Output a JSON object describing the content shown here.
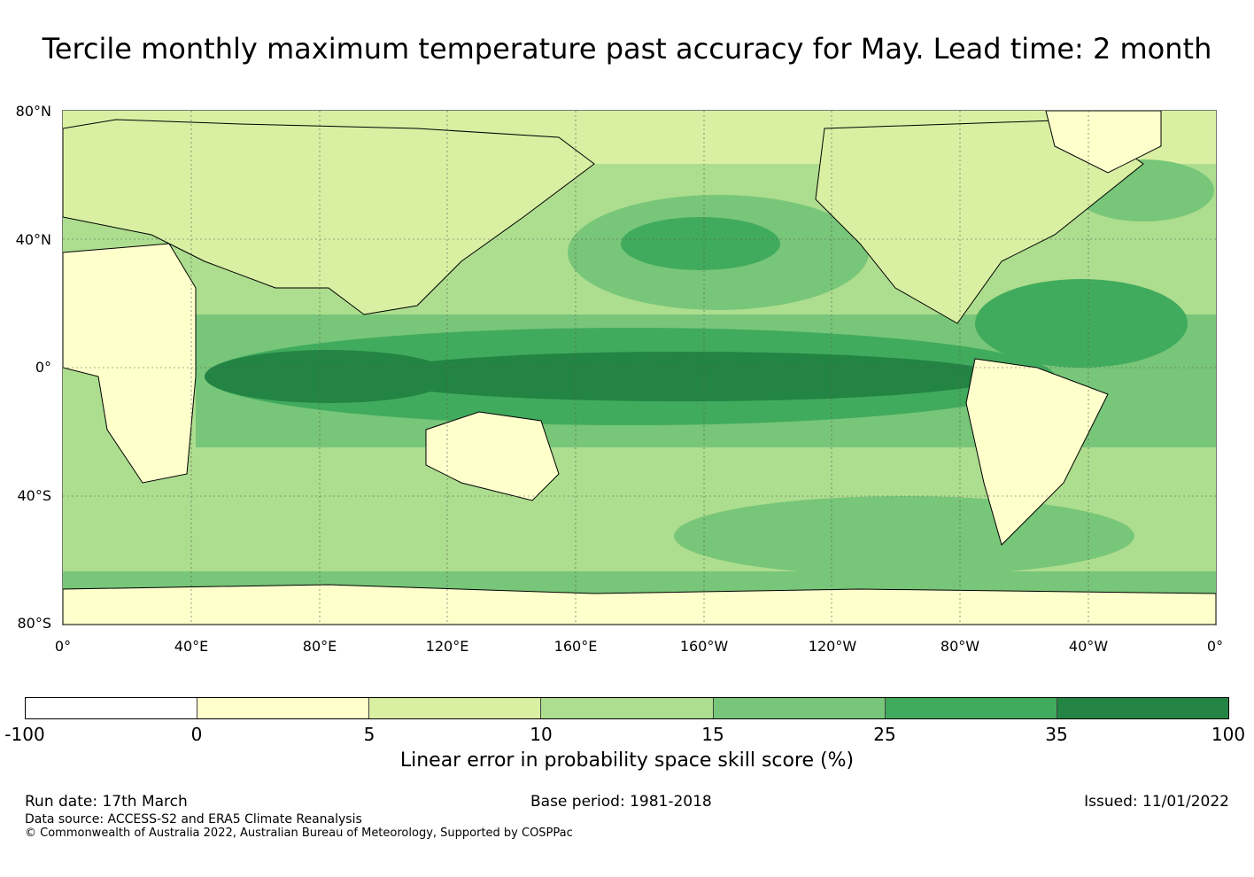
{
  "title": "Tercile monthly maximum temperature past accuracy for May. Lead time: 2 month",
  "map": {
    "lat_labels": [
      "80°N",
      "40°N",
      "0°",
      "40°S",
      "80°S"
    ],
    "lon_labels": [
      "0°",
      "40°E",
      "80°E",
      "120°E",
      "160°E",
      "160°W",
      "120°W",
      "80°W",
      "40°W",
      "0°"
    ]
  },
  "colorbar": {
    "colors": [
      "#ffffff",
      "#ffffcc",
      "#d9f0a3",
      "#addd8e",
      "#78c679",
      "#41ab5d",
      "#238443"
    ],
    "ticks": [
      "-100",
      "0",
      "5",
      "10",
      "15",
      "25",
      "35",
      "100"
    ],
    "label": "Linear error in probability space skill score (%)"
  },
  "footer": {
    "run_date": "Run date: 17th March",
    "base_period": "Base period: 1981-2018",
    "issued": "Issued: 11/01/2022",
    "data_source": "Data source: ACCESS-S2 and ERA5 Climate Reanalysis",
    "copyright": "© Commonwealth of Australia 2022, Australian Bureau of Meteorology, Supported by COSPPac"
  }
}
